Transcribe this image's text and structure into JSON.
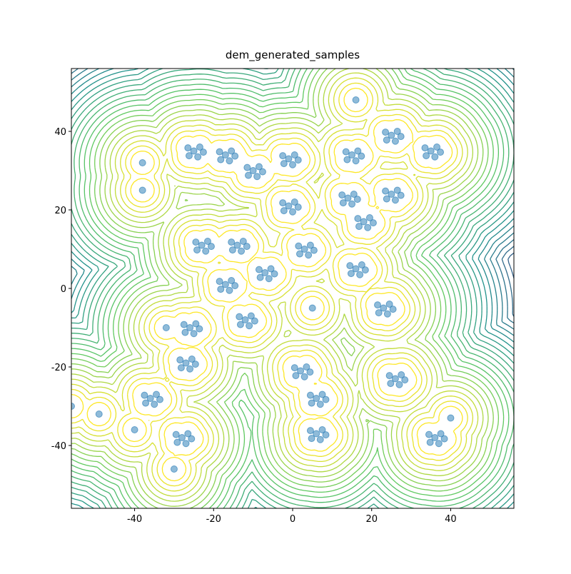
{
  "chart_data": {
    "type": "scatter",
    "title": "dem_generated_samples",
    "xlim": [
      -56,
      56
    ],
    "ylim": [
      -56,
      56
    ],
    "xticks": [
      -40,
      -20,
      0,
      20,
      40
    ],
    "yticks": [
      -40,
      -20,
      0,
      20,
      40
    ],
    "series": [
      {
        "color": "#1f77b4",
        "x": [
          -25,
          -23.5,
          -26.5,
          -24,
          -26.2,
          -22.6,
          -17,
          -15.5,
          -18.5,
          -16,
          -18.2,
          -14.6,
          -10,
          -8.5,
          -11.5,
          -9,
          -11.2,
          -7.6,
          -1,
          0.5,
          -2.5,
          0,
          -2.2,
          1.4,
          15,
          16.5,
          13.5,
          16,
          13.8,
          17.4,
          25,
          26.5,
          23.5,
          26,
          23.8,
          27.4,
          35,
          36.5,
          33.5,
          36,
          33.8,
          37.4,
          -23,
          -21.5,
          -24.5,
          -22,
          -24.2,
          -20.6,
          -14,
          -12.5,
          -15.5,
          -13,
          -15.2,
          -11.6,
          -1,
          0.5,
          -2.5,
          0,
          -2.2,
          1.4,
          3,
          4.5,
          1.5,
          4,
          1.8,
          5.4,
          -7,
          -5.5,
          -8.5,
          -6,
          -8.2,
          -4.6,
          14,
          15.5,
          12.5,
          15,
          12.8,
          16.4,
          25,
          26.5,
          23.5,
          26,
          23.8,
          27.4,
          18,
          19.5,
          16.5,
          19,
          16.8,
          20.4,
          16,
          17.5,
          14.5,
          17,
          14.8,
          18.4,
          -17,
          -15.5,
          -18.5,
          -16,
          -18.2,
          -14.6,
          -12,
          -10.5,
          -13.5,
          -11,
          -13.2,
          -9.6,
          23,
          24.5,
          21.5,
          24,
          21.8,
          25.4,
          -26,
          -24.5,
          -27.5,
          -25,
          -27.2,
          -23.6,
          -27,
          -25.5,
          -28.5,
          -26,
          -28.2,
          -24.6,
          -36,
          -34.5,
          -37.5,
          -35,
          -37.2,
          -33.6,
          -28,
          -26.5,
          -29.5,
          -27,
          -29.2,
          -25.6,
          2,
          3.5,
          0.5,
          3,
          0.8,
          4.4,
          6,
          7.5,
          4.5,
          7,
          4.8,
          8.4,
          6,
          7.5,
          4.5,
          7,
          4.8,
          8.4,
          26,
          27.5,
          24.5,
          27,
          24.8,
          28.4,
          36,
          37.5,
          34.5,
          37,
          34.8,
          38.4,
          -38,
          -38,
          -56,
          -49,
          16,
          5,
          -32,
          -30,
          40,
          -40
        ],
        "values": [
          35,
          36,
          35.8,
          33.5,
          33.8,
          34.7,
          34,
          35,
          34.8,
          32.5,
          32.8,
          33.7,
          30,
          31,
          30.8,
          28.5,
          28.8,
          29.7,
          33,
          34,
          33.8,
          31.5,
          31.8,
          32.7,
          34,
          35,
          34.8,
          32.5,
          32.8,
          33.7,
          39,
          40,
          39.8,
          37.5,
          37.8,
          38.7,
          35,
          36,
          35.8,
          33.5,
          33.8,
          34.7,
          11,
          12,
          11.8,
          9.5,
          9.8,
          10.7,
          11,
          12,
          11.8,
          9.5,
          9.8,
          10.7,
          21,
          22,
          21.8,
          19.5,
          19.8,
          20.7,
          10,
          11,
          10.8,
          8.5,
          8.8,
          9.7,
          4,
          5,
          4.8,
          2.5,
          2.8,
          3.7,
          23,
          24,
          23.8,
          21.5,
          21.8,
          22.7,
          24,
          25,
          24.8,
          22.5,
          22.8,
          23.7,
          17,
          18,
          17.8,
          15.5,
          15.8,
          16.7,
          5,
          6,
          5.8,
          3.5,
          3.8,
          4.7,
          1,
          2,
          1.8,
          -0.5,
          -0.2,
          0.7,
          -8,
          -7,
          -7.2,
          -9.5,
          -9.2,
          -8.3,
          -5,
          -4,
          -4.2,
          -6.5,
          -6.2,
          -5.3,
          -10,
          -9,
          -9.2,
          -11.5,
          -11.2,
          -10.3,
          -19,
          -18,
          -18.2,
          -20.5,
          -20.2,
          -19.3,
          -28,
          -27,
          -27.2,
          -29.5,
          -29.2,
          -28.3,
          -38,
          -37,
          -37.2,
          -39.5,
          -39.2,
          -38.3,
          -21,
          -20,
          -20.2,
          -22.5,
          -22.2,
          -21.3,
          -28,
          -27,
          -27.2,
          -29.5,
          -29.2,
          -28.3,
          -37,
          -36,
          -36.2,
          -38.5,
          -38.2,
          -37.3,
          -23,
          -22,
          -22.2,
          -24.5,
          -24.2,
          -23.3,
          -38,
          -37,
          -37.2,
          -39.5,
          -39.2,
          -38.3,
          32,
          25,
          -30,
          -32,
          48,
          -5,
          -10,
          -46,
          -33,
          -36
        ]
      }
    ]
  }
}
